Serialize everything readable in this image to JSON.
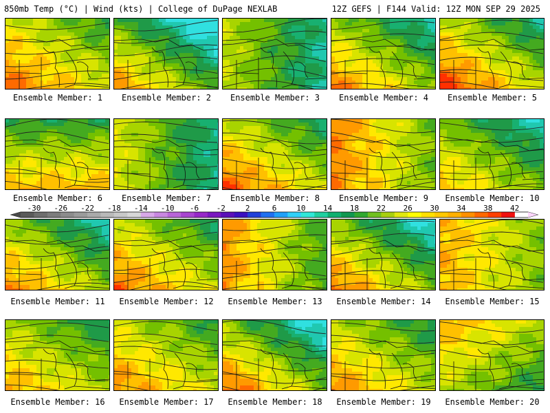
{
  "header": {
    "left": "850mb Temp (°C) | Wind (kts) | College of DuPage NEXLAB",
    "right": "12Z GEFS | F144 Valid: 12Z MON SEP 29 2025"
  },
  "caption_prefix": "Ensemble Member: ",
  "members": [
    {
      "label": "Ensemble Member: 1",
      "temp_warm": 0.75,
      "gradient": 0.55,
      "cool_corner": "top-right",
      "warm_corner": "left"
    },
    {
      "label": "Ensemble Member: 2",
      "temp_warm": 0.35,
      "gradient": 0.85,
      "cool_corner": "top-right",
      "warm_corner": "bottom-left"
    },
    {
      "label": "Ensemble Member: 3",
      "temp_warm": 0.3,
      "gradient": 0.5,
      "cool_corner": "right",
      "warm_corner": "bottom-left"
    },
    {
      "label": "Ensemble Member: 4",
      "temp_warm": 0.55,
      "gradient": 0.7,
      "cool_corner": "top-right",
      "warm_corner": "left"
    },
    {
      "label": "Ensemble Member: 5",
      "temp_warm": 0.7,
      "gradient": 0.75,
      "cool_corner": "top-right",
      "warm_corner": "left"
    },
    {
      "label": "Ensemble Member: 6",
      "temp_warm": 0.65,
      "gradient": 0.6,
      "cool_corner": "top",
      "warm_corner": "bottom"
    },
    {
      "label": "Ensemble Member: 7",
      "temp_warm": 0.35,
      "gradient": 0.55,
      "cool_corner": "right",
      "warm_corner": "left"
    },
    {
      "label": "Ensemble Member: 8",
      "temp_warm": 0.7,
      "gradient": 0.65,
      "cool_corner": "top-right",
      "warm_corner": "left"
    },
    {
      "label": "Ensemble Member: 9",
      "temp_warm": 0.8,
      "gradient": 0.55,
      "cool_corner": "right",
      "warm_corner": "top-left"
    },
    {
      "label": "Ensemble Member: 10",
      "temp_warm": 0.45,
      "gradient": 0.6,
      "cool_corner": "top-right",
      "warm_corner": "left"
    },
    {
      "label": "Ensemble Member: 11",
      "temp_warm": 0.55,
      "gradient": 0.7,
      "cool_corner": "top-right",
      "warm_corner": "bottom"
    },
    {
      "label": "Ensemble Member: 12",
      "temp_warm": 0.7,
      "gradient": 0.6,
      "cool_corner": "top-right",
      "warm_corner": "left"
    },
    {
      "label": "Ensemble Member: 13",
      "temp_warm": 0.7,
      "gradient": 0.6,
      "cool_corner": "right",
      "warm_corner": "top-left"
    },
    {
      "label": "Ensemble Member: 14",
      "temp_warm": 0.5,
      "gradient": 0.8,
      "cool_corner": "top-right",
      "warm_corner": "bottom-left"
    },
    {
      "label": "Ensemble Member: 15",
      "temp_warm": 0.75,
      "gradient": 0.4,
      "cool_corner": "right",
      "warm_corner": "left"
    },
    {
      "label": "Ensemble Member: 16",
      "temp_warm": 0.6,
      "gradient": 0.5,
      "cool_corner": "top-right",
      "warm_corner": "left"
    },
    {
      "label": "Ensemble Member: 17",
      "temp_warm": 0.7,
      "gradient": 0.5,
      "cool_corner": "top-right",
      "warm_corner": "left"
    },
    {
      "label": "Ensemble Member: 18",
      "temp_warm": 0.5,
      "gradient": 0.85,
      "cool_corner": "top-right",
      "warm_corner": "bottom-left"
    },
    {
      "label": "Ensemble Member: 19",
      "temp_warm": 0.65,
      "gradient": 0.55,
      "cool_corner": "top-right",
      "warm_corner": "left"
    },
    {
      "label": "Ensemble Member: 20",
      "temp_warm": 0.6,
      "gradient": 0.45,
      "cool_corner": "bottom-right",
      "warm_corner": "top-left"
    }
  ],
  "colorbar": {
    "labels": [
      "-30",
      "-26",
      "-22",
      "-18",
      "-14",
      "-10",
      "-6",
      "-2",
      "2",
      "6",
      "10",
      "14",
      "18",
      "22",
      "26",
      "30",
      "34",
      "38",
      "42"
    ],
    "label_values": [
      -30,
      -26,
      -22,
      -18,
      -14,
      -10,
      -6,
      -2,
      2,
      6,
      10,
      14,
      18,
      22,
      26,
      30,
      34,
      38,
      42
    ],
    "min": -32,
    "max": 44,
    "step": 2,
    "colors": [
      "#5a5a5a",
      "#6e6e6e",
      "#7d7d7d",
      "#8c8c8c",
      "#9b9b9b",
      "#aaaaaa",
      "#b9b9b9",
      "#c8c8c8",
      "#d7d7d7",
      "#d8a8e8",
      "#c887e0",
      "#b865d8",
      "#a845d0",
      "#9628c8",
      "#7a18c0",
      "#5a10b8",
      "#3a10c0",
      "#2040d8",
      "#2070f0",
      "#20a0f8",
      "#30d0f8",
      "#30e8d8",
      "#20d0a0",
      "#10b070",
      "#109850",
      "#30a830",
      "#70c020",
      "#a8d010",
      "#e0e810",
      "#ffff00",
      "#ffe000",
      "#ffc800",
      "#ffb000",
      "#ff9000",
      "#ff6800",
      "#ff4000",
      "#f01010"
    ]
  }
}
